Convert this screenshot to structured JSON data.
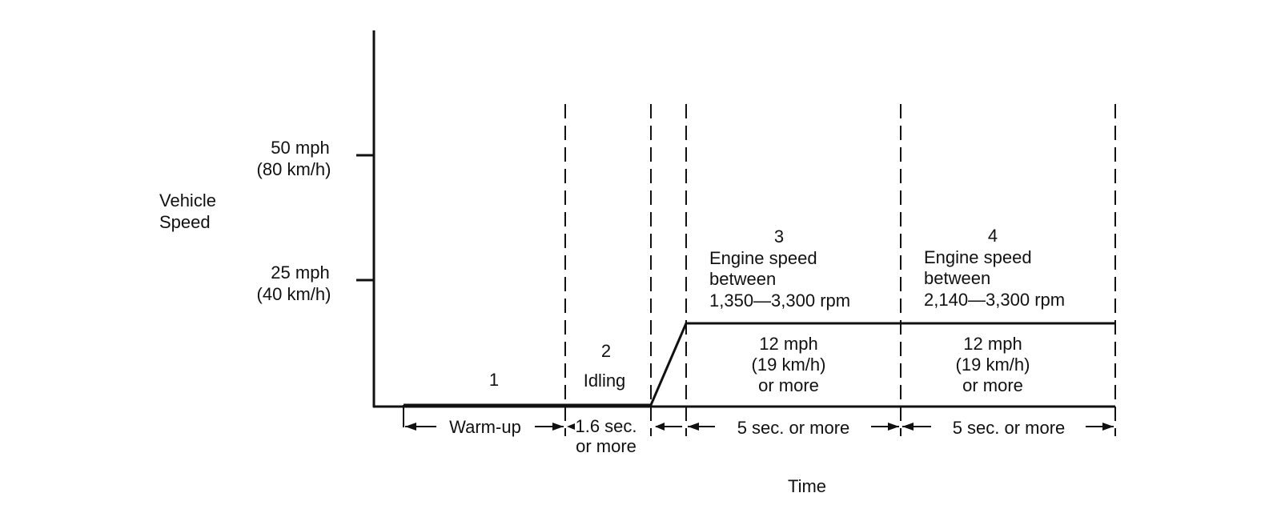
{
  "axis": {
    "y_label_line1": "Vehicle",
    "y_label_line2": "Speed",
    "x_label": "Time"
  },
  "ticks": [
    {
      "line1": "50 mph",
      "line2": "(80 km/h)"
    },
    {
      "line1": "25 mph",
      "line2": "(40 km/h)"
    }
  ],
  "phases": {
    "p1": {
      "number": "1"
    },
    "p2": {
      "number": "2",
      "label": "Idling"
    },
    "p3": {
      "number": "3",
      "line1": "Engine speed",
      "line2": "between",
      "line3": "1,350—3,300 rpm",
      "speed1": "12 mph",
      "speed2": "(19 km/h)",
      "speed3": "or more"
    },
    "p4": {
      "number": "4",
      "line1": "Engine speed",
      "line2": "between",
      "line3": "2,140—3,300 rpm",
      "speed1": "12 mph",
      "speed2": "(19 km/h)",
      "speed3": "or more"
    }
  },
  "durations": {
    "warmup": "Warm-up",
    "idle_line1": "1.6 sec.",
    "idle_line2": "or more",
    "p3": "5 sec. or more",
    "p4": "5 sec. or more"
  }
}
